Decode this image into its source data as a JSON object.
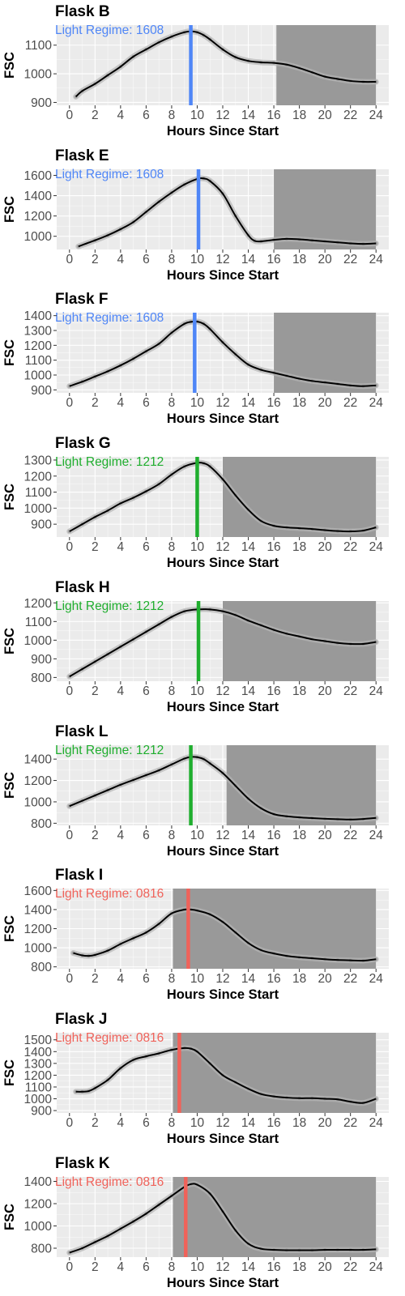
{
  "chart_data": [
    {
      "type": "line",
      "title": "Flask B",
      "xlabel": "Hours Since Start",
      "ylabel": "FSC",
      "xlim": [
        -1,
        25
      ],
      "xticks": [
        0,
        2,
        4,
        6,
        8,
        10,
        12,
        14,
        16,
        18,
        20,
        22,
        24
      ],
      "ylim": [
        890,
        1170
      ],
      "yticks": [
        900,
        1000,
        1100
      ],
      "dark_period": [
        16.2,
        24
      ],
      "annotation": {
        "text": "Light Regime:  1608",
        "color": "#4f86f7",
        "x": 9.5
      },
      "series": [
        {
          "x": [
            0.5,
            1,
            2,
            3,
            4,
            5,
            6,
            7,
            8,
            9,
            9.5,
            10,
            10.5,
            11,
            12,
            13,
            14,
            15,
            16,
            17,
            18,
            19,
            20,
            21,
            22,
            23,
            24
          ],
          "y": [
            920,
            940,
            965,
            995,
            1025,
            1060,
            1085,
            1110,
            1130,
            1145,
            1148,
            1145,
            1135,
            1120,
            1085,
            1058,
            1045,
            1040,
            1038,
            1032,
            1020,
            1005,
            990,
            982,
            975,
            972,
            972
          ]
        }
      ],
      "grid": true
    },
    {
      "type": "line",
      "title": "Flask E",
      "xlabel": "Hours Since Start",
      "ylabel": "FSC",
      "xlim": [
        -1,
        25
      ],
      "xticks": [
        0,
        2,
        4,
        6,
        8,
        10,
        12,
        14,
        16,
        18,
        20,
        22,
        24
      ],
      "ylim": [
        870,
        1660
      ],
      "yticks": [
        1000,
        1200,
        1400,
        1600
      ],
      "dark_period": [
        16,
        24
      ],
      "annotation": {
        "text": "Light Regime:  1608",
        "color": "#4f86f7",
        "x": 10.1
      },
      "series": [
        {
          "x": [
            0.7,
            2,
            3,
            4,
            5,
            6,
            7,
            8,
            9,
            10,
            10.5,
            11,
            12,
            13,
            14,
            14.5,
            15,
            16,
            17,
            18,
            19,
            20,
            21,
            22,
            23,
            24
          ],
          "y": [
            900,
            960,
            1010,
            1070,
            1140,
            1240,
            1340,
            1430,
            1510,
            1565,
            1570,
            1545,
            1420,
            1200,
            1010,
            955,
            950,
            965,
            975,
            970,
            960,
            950,
            940,
            930,
            925,
            930
          ]
        }
      ],
      "grid": true
    },
    {
      "type": "line",
      "title": "Flask F",
      "xlabel": "Hours Since Start",
      "ylabel": "FSC",
      "xlim": [
        -1,
        25
      ],
      "xticks": [
        0,
        2,
        4,
        6,
        8,
        10,
        12,
        14,
        16,
        18,
        20,
        22,
        24
      ],
      "ylim": [
        880,
        1420
      ],
      "yticks": [
        900,
        1000,
        1100,
        1200,
        1300,
        1400
      ],
      "dark_period": [
        16,
        24
      ],
      "annotation": {
        "text": "Light Regime:  1608",
        "color": "#4f86f7",
        "x": 9.8
      },
      "series": [
        {
          "x": [
            0,
            1,
            2,
            3,
            4,
            5,
            6,
            7,
            8,
            9,
            9.5,
            10,
            10.5,
            11,
            12,
            13,
            14,
            15,
            16,
            17,
            18,
            19,
            20,
            21,
            22,
            23,
            24
          ],
          "y": [
            925,
            955,
            990,
            1025,
            1065,
            1110,
            1160,
            1210,
            1285,
            1345,
            1358,
            1360,
            1345,
            1310,
            1220,
            1140,
            1070,
            1035,
            1015,
            995,
            975,
            960,
            950,
            940,
            930,
            925,
            930
          ]
        }
      ],
      "grid": true
    },
    {
      "type": "line",
      "title": "Flask G",
      "xlabel": "Hours Since Start",
      "ylabel": "FSC",
      "xlim": [
        -1,
        25
      ],
      "xticks": [
        0,
        2,
        4,
        6,
        8,
        10,
        12,
        14,
        16,
        18,
        20,
        22,
        24
      ],
      "ylim": [
        820,
        1320
      ],
      "yticks": [
        900,
        1000,
        1100,
        1200,
        1300
      ],
      "dark_period": [
        12,
        24
      ],
      "annotation": {
        "text": "Light Regime:  1212",
        "color": "#1fae2e",
        "x": 10
      },
      "series": [
        {
          "x": [
            0,
            1,
            2,
            3,
            4,
            5,
            6,
            7,
            8,
            9,
            10,
            10.5,
            11,
            12,
            13,
            14,
            15,
            16,
            17,
            18,
            19,
            20,
            21,
            22,
            23,
            24
          ],
          "y": [
            855,
            900,
            945,
            985,
            1030,
            1065,
            1105,
            1150,
            1210,
            1260,
            1283,
            1280,
            1260,
            1180,
            1080,
            990,
            920,
            890,
            880,
            875,
            870,
            863,
            857,
            855,
            860,
            880
          ]
        }
      ],
      "grid": true
    },
    {
      "type": "line",
      "title": "Flask H",
      "xlabel": "Hours Since Start",
      "ylabel": "FSC",
      "xlim": [
        -1,
        25
      ],
      "xticks": [
        0,
        2,
        4,
        6,
        8,
        10,
        12,
        14,
        16,
        18,
        20,
        22,
        24
      ],
      "ylim": [
        780,
        1210
      ],
      "yticks": [
        800,
        900,
        1000,
        1100,
        1200
      ],
      "dark_period": [
        12,
        24
      ],
      "annotation": {
        "text": "Light Regime:  1212",
        "color": "#1fae2e",
        "x": 10.1
      },
      "series": [
        {
          "x": [
            0,
            1,
            2,
            3,
            4,
            5,
            6,
            7,
            8,
            9,
            10,
            11,
            12,
            13,
            14,
            15,
            16,
            17,
            18,
            19,
            20,
            21,
            22,
            23,
            24
          ],
          "y": [
            805,
            845,
            885,
            925,
            965,
            1005,
            1045,
            1085,
            1125,
            1155,
            1165,
            1165,
            1155,
            1135,
            1105,
            1080,
            1055,
            1035,
            1020,
            1005,
            995,
            985,
            980,
            980,
            990
          ]
        }
      ],
      "grid": true
    },
    {
      "type": "line",
      "title": "Flask L",
      "xlabel": "Hours Since Start",
      "ylabel": "FSC",
      "xlim": [
        -1,
        25
      ],
      "xticks": [
        0,
        2,
        4,
        6,
        8,
        10,
        12,
        14,
        16,
        18,
        20,
        22,
        24
      ],
      "ylim": [
        780,
        1530
      ],
      "yticks": [
        800,
        1000,
        1200,
        1400
      ],
      "dark_period": [
        12.3,
        24
      ],
      "annotation": {
        "text": "Light Regime:  1212",
        "color": "#1fae2e",
        "x": 9.5
      },
      "series": [
        {
          "x": [
            0,
            1,
            2,
            3,
            4,
            5,
            6,
            7,
            8,
            9,
            9.5,
            10,
            10.5,
            11,
            12,
            13,
            14,
            15,
            16,
            17,
            18,
            19,
            20,
            21,
            22,
            23,
            24
          ],
          "y": [
            960,
            1010,
            1060,
            1110,
            1160,
            1205,
            1250,
            1295,
            1350,
            1405,
            1420,
            1418,
            1400,
            1360,
            1270,
            1150,
            1030,
            940,
            885,
            865,
            855,
            848,
            842,
            838,
            835,
            840,
            850
          ]
        }
      ],
      "grid": true
    },
    {
      "type": "line",
      "title": "Flask I",
      "xlabel": "Hours Since Start",
      "ylabel": "FSC",
      "xlim": [
        -1,
        25
      ],
      "xticks": [
        0,
        2,
        4,
        6,
        8,
        10,
        12,
        14,
        16,
        18,
        20,
        22,
        24
      ],
      "ylim": [
        780,
        1620
      ],
      "yticks": [
        800,
        1000,
        1200,
        1400,
        1600
      ],
      "dark_period": [
        8.1,
        24
      ],
      "annotation": {
        "text": "Light Regime:  0816",
        "color": "#f0625a",
        "x": 9.3
      },
      "series": [
        {
          "x": [
            0.3,
            1,
            1.5,
            2,
            3,
            4,
            5,
            6,
            7,
            8,
            9,
            9.5,
            10,
            11,
            12,
            13,
            14,
            15,
            16,
            17,
            18,
            19,
            20,
            21,
            22,
            23,
            24
          ],
          "y": [
            945,
            920,
            915,
            925,
            970,
            1040,
            1100,
            1160,
            1250,
            1360,
            1400,
            1400,
            1390,
            1350,
            1270,
            1160,
            1050,
            975,
            940,
            915,
            900,
            890,
            880,
            872,
            868,
            865,
            880
          ]
        }
      ],
      "grid": true
    },
    {
      "type": "line",
      "title": "Flask J",
      "xlabel": "Hours Since Start",
      "ylabel": "FSC",
      "xlim": [
        -1,
        25
      ],
      "xticks": [
        0,
        2,
        4,
        6,
        8,
        10,
        12,
        14,
        16,
        18,
        20,
        22,
        24
      ],
      "ylim": [
        880,
        1560
      ],
      "yticks": [
        900,
        1000,
        1100,
        1200,
        1300,
        1400,
        1500
      ],
      "dark_period": [
        8.1,
        24
      ],
      "annotation": {
        "text": "Light Regime:  0816",
        "color": "#f0625a",
        "x": 8.6
      },
      "series": [
        {
          "x": [
            0.5,
            1,
            1.5,
            2,
            3,
            4,
            5,
            6,
            7,
            8,
            9,
            9.5,
            10,
            11,
            12,
            13,
            14,
            15,
            16,
            17,
            18,
            19,
            20,
            21,
            22,
            23,
            24
          ],
          "y": [
            1060,
            1060,
            1065,
            1090,
            1160,
            1260,
            1330,
            1360,
            1385,
            1415,
            1430,
            1425,
            1400,
            1300,
            1200,
            1140,
            1085,
            1040,
            1020,
            1010,
            1005,
            1005,
            1000,
            995,
            975,
            965,
            1000
          ]
        }
      ],
      "grid": true
    },
    {
      "type": "line",
      "title": "Flask K",
      "xlabel": "Hours Since Start",
      "ylabel": "FSC",
      "xlim": [
        -1,
        25
      ],
      "xticks": [
        0,
        2,
        4,
        6,
        8,
        10,
        12,
        14,
        16,
        18,
        20,
        22,
        24
      ],
      "ylim": [
        720,
        1440
      ],
      "yticks": [
        800,
        1000,
        1200,
        1400
      ],
      "dark_period": [
        8.1,
        24
      ],
      "annotation": {
        "text": "Light Regime:  0816",
        "color": "#f0625a",
        "x": 9.1
      },
      "series": [
        {
          "x": [
            0,
            1,
            2,
            3,
            4,
            5,
            6,
            7,
            8,
            9,
            9.5,
            10,
            11,
            12,
            13,
            14,
            15,
            16,
            17,
            18,
            19,
            20,
            21,
            22,
            23,
            24
          ],
          "y": [
            760,
            800,
            855,
            910,
            975,
            1040,
            1110,
            1190,
            1270,
            1350,
            1375,
            1370,
            1290,
            1130,
            960,
            840,
            795,
            785,
            782,
            782,
            782,
            785,
            785,
            785,
            785,
            790
          ]
        }
      ],
      "grid": true
    }
  ],
  "colors": {
    "panel_bg": "#ebebeb",
    "grid": "#ffffff",
    "dark_band": "#999999",
    "line": "#000000",
    "ribbon": "#b3b3b3",
    "tick_text": "#4d4d4d"
  }
}
